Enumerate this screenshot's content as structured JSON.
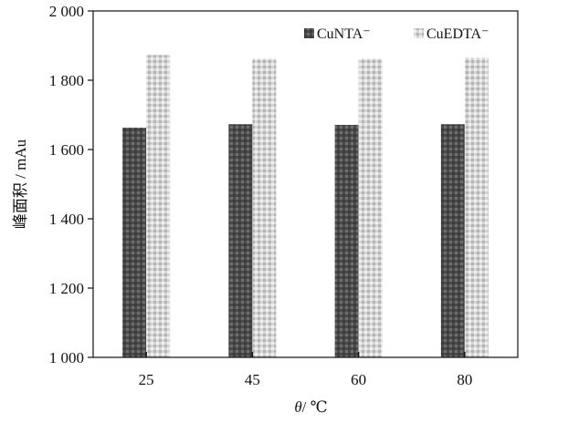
{
  "chart_data": {
    "type": "bar",
    "categories": [
      "25",
      "45",
      "60",
      "80"
    ],
    "series": [
      {
        "name": "CuNTA⁻",
        "values": [
          1663,
          1673,
          1671,
          1673
        ],
        "color": "#555555"
      },
      {
        "name": "CuEDTA⁻",
        "values": [
          1873,
          1862,
          1862,
          1865
        ],
        "color": "#c8c8c8"
      }
    ],
    "title": "",
    "xlabel_var": "θ",
    "xlabel_unit": "/ ℃",
    "ylabel": "峰面积 / mAu",
    "ylim": [
      1000,
      2000
    ],
    "yticks": [
      1000,
      1200,
      1400,
      1600,
      1800,
      2000
    ],
    "ytick_labels": [
      "1 000",
      "1 200",
      "1 400",
      "1 600",
      "1 800",
      "2 000"
    ],
    "grid": false,
    "legend_position": "top-right"
  }
}
